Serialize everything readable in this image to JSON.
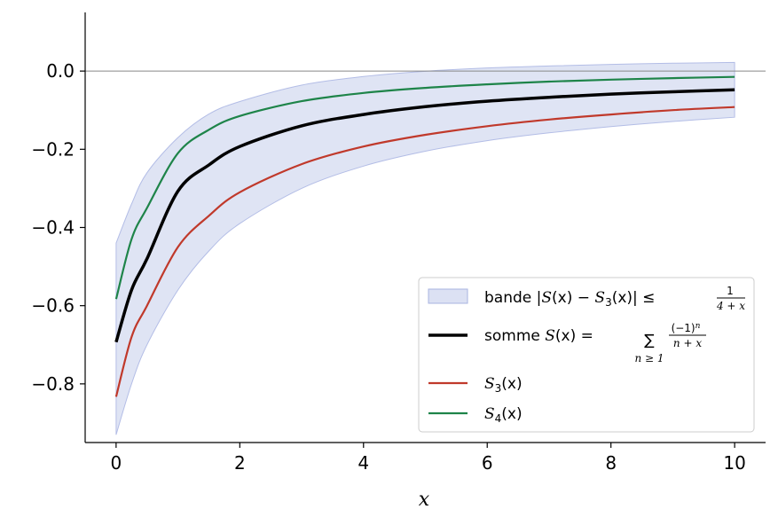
{
  "chart_data": {
    "type": "line",
    "title": "",
    "xlabel": "x",
    "ylabel": "",
    "xlim": [
      -0.5,
      10.5
    ],
    "ylim": [
      -0.95,
      0.15
    ],
    "xticks": [
      0,
      2,
      4,
      6,
      8,
      10
    ],
    "xtick_labels": [
      "0",
      "2",
      "4",
      "6",
      "8",
      "10"
    ],
    "yticks": [
      0.0,
      -0.2,
      -0.4,
      -0.6,
      -0.8
    ],
    "ytick_labels": [
      "0.0",
      "−0.2",
      "−0.4",
      "−0.6",
      "−0.8"
    ],
    "grid": false,
    "legend_position": "bottom-right",
    "reference_line_y": 0,
    "x": [
      0,
      0.25,
      0.5,
      1,
      1.5,
      2,
      3,
      4,
      5,
      6,
      7,
      8,
      9,
      10
    ],
    "band": {
      "legend": "bande |S(x) − S₃(x)| ≤ 1/(4 + x)",
      "legend_parts": {
        "prefix": "bande |",
        "S": "S",
        "x1": "(x) − ",
        "S3": "S",
        "sub3": "3",
        "x2": "(x)| ≤ ",
        "num": "1",
        "den": "4 + x"
      },
      "color": "#c5cdeb",
      "lower": [
        -0.93,
        -0.8,
        -0.7,
        -0.56,
        -0.46,
        -0.39,
        -0.3,
        -0.243,
        -0.205,
        -0.178,
        -0.158,
        -0.142,
        -0.129,
        -0.118
      ],
      "upper": [
        -0.44,
        -0.34,
        -0.26,
        -0.17,
        -0.11,
        -0.078,
        -0.036,
        -0.014,
        -0.0005,
        0.008,
        0.013,
        0.017,
        0.02,
        0.022
      ]
    },
    "series": [
      {
        "legend": "somme S(x) = Σ (−1)^n/(n + x)",
        "legend_parts": {
          "prefix": "somme ",
          "S": "S",
          "mid": "(x) = ",
          "sigma": "∑",
          "num": "(−1)",
          "sup": "n",
          "den": "n + x",
          "under": "n ≥ 1"
        },
        "color": "#000000",
        "values": [
          -0.693,
          -0.56,
          -0.48,
          -0.307,
          -0.24,
          -0.193,
          -0.14,
          -0.111,
          -0.091,
          -0.077,
          -0.067,
          -0.059,
          -0.053,
          -0.048
        ]
      },
      {
        "legend": "S₃(x)",
        "legend_parts": {
          "S": "S",
          "sub": "3",
          "tail": "(x)"
        },
        "color": "#c0392b",
        "values": [
          -0.833,
          -0.68,
          -0.6,
          -0.45,
          -0.37,
          -0.31,
          -0.238,
          -0.193,
          -0.163,
          -0.141,
          -0.124,
          -0.111,
          -0.1,
          -0.092
        ]
      },
      {
        "legend": "S₄(x)",
        "legend_parts": {
          "S": "S",
          "sub": "4",
          "tail": "(x)"
        },
        "color": "#1e8449",
        "values": [
          -0.583,
          -0.43,
          -0.35,
          -0.21,
          -0.15,
          -0.115,
          -0.077,
          -0.056,
          -0.043,
          -0.034,
          -0.027,
          -0.022,
          -0.018,
          -0.015
        ]
      }
    ]
  }
}
